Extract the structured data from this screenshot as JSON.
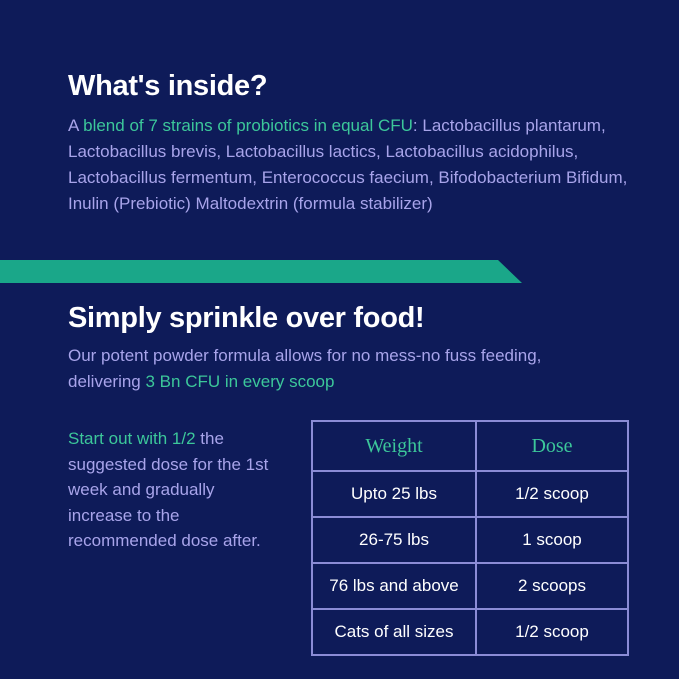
{
  "inside": {
    "title": "What's inside?",
    "prefix": "A ",
    "highlight": "blend of 7 strains of  probiotics in equal CFU",
    "rest": ": Lactobacillus plantarum, Lactobacillus brevis, Lactobacillus lactics, Lactobacillus acidophilus, Lactobacillus fermentum, Enterococcus faecium, Bifodobacterium Bifidum, Inulin (Prebiotic) Maltodextrin (formula stabilizer)"
  },
  "sprinkle": {
    "title": "Simply sprinkle over food!",
    "text": "Our potent powder formula allows for no mess-no fuss feeding, delivering ",
    "highlight": "3 Bn CFU in every scoop"
  },
  "note": {
    "highlight": "Start out with 1/2",
    "text": " the suggested dose for the 1st week and gradually increase to the recommended dose after."
  },
  "table": {
    "header": [
      "Weight",
      "Dose"
    ],
    "rows": [
      [
        "Upto 25 lbs",
        "1/2 scoop"
      ],
      [
        "26-75 lbs",
        "1 scoop"
      ],
      [
        "76 lbs and above",
        "2 scoops"
      ],
      [
        "Cats of all sizes",
        "1/2 scoop"
      ]
    ]
  }
}
